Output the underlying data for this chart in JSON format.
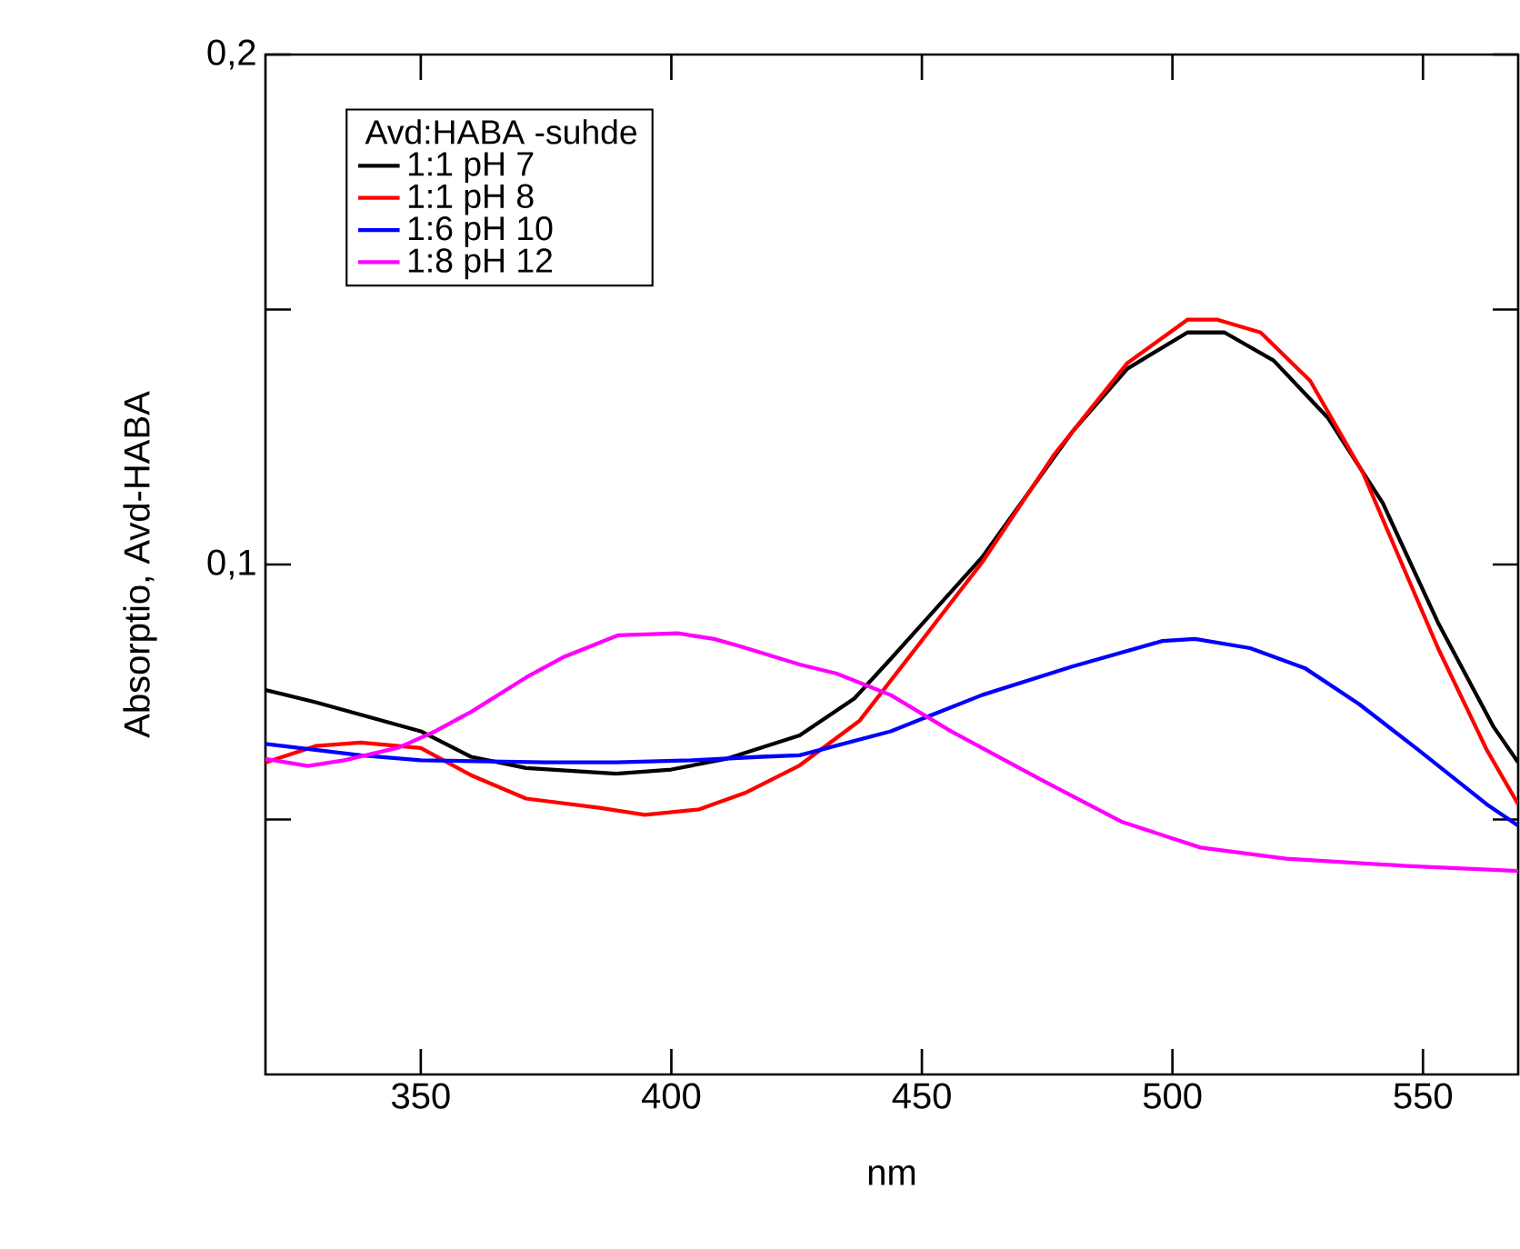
{
  "chart_data": {
    "type": "line",
    "xlabel": "nm",
    "ylabel": "Absorptio, Avd-HABA",
    "legend_title": "Avd:HABA -suhde",
    "xlim": [
      319,
      569
    ],
    "ylim": [
      0,
      0.2
    ],
    "xticks": [
      350,
      400,
      450,
      500,
      550
    ],
    "yticks": [
      {
        "value": 0.05,
        "label": null
      },
      {
        "value": 0.1,
        "label": "0,1"
      },
      {
        "value": 0.15,
        "label": null
      },
      {
        "value": 0.2,
        "label": "0,2"
      }
    ],
    "legend": "top left",
    "grid": false,
    "marker": "none",
    "line_style": "solid",
    "series": [
      {
        "name": "1:1 pH 7",
        "color": "#000000",
        "x": [
          319,
          329,
          350,
          360,
          371,
          389,
          400,
          411,
          425.6,
          436.5,
          443.8,
          462,
          480,
          491,
          503,
          510.4,
          520.2,
          531,
          542,
          553,
          564,
          569
        ],
        "values": [
          0.0754,
          0.073,
          0.0673,
          0.0623,
          0.0601,
          0.059,
          0.0598,
          0.0619,
          0.0665,
          0.0737,
          0.0815,
          0.1014,
          0.126,
          0.1384,
          0.1455,
          0.1455,
          0.14,
          0.1288,
          0.112,
          0.0886,
          0.0683,
          0.0612
        ]
      },
      {
        "name": "1:1 pH 8",
        "color": "#ff0000",
        "x": [
          319,
          329,
          338,
          350,
          360,
          371,
          385.6,
          394.7,
          405.6,
          414.7,
          425.6,
          437.6,
          450,
          462,
          476.5,
          491,
          503,
          509,
          517.6,
          527.5,
          538,
          553,
          562.7,
          569
        ],
        "values": [
          0.0612,
          0.0644,
          0.0651,
          0.064,
          0.0587,
          0.0541,
          0.0523,
          0.0509,
          0.052,
          0.0552,
          0.0606,
          0.0694,
          0.0851,
          0.1004,
          0.1217,
          0.1395,
          0.148,
          0.148,
          0.1455,
          0.136,
          0.118,
          0.0836,
          0.0637,
          0.053
        ]
      },
      {
        "name": "1:6 pH 10",
        "color": "#0000ff",
        "x": [
          319,
          338,
          350,
          374.7,
          389,
          404,
          418,
          425.6,
          443.8,
          462,
          480,
          498,
          504.5,
          515.5,
          526.4,
          537.3,
          549,
          562.7,
          569
        ],
        "values": [
          0.0648,
          0.0626,
          0.0616,
          0.0612,
          0.0612,
          0.0616,
          0.0623,
          0.0626,
          0.0673,
          0.0744,
          0.08,
          0.085,
          0.0854,
          0.0836,
          0.0797,
          0.0726,
          0.0637,
          0.053,
          0.0488
        ]
      },
      {
        "name": "1:8 pH 12",
        "color": "#ff00ff",
        "x": [
          319,
          327.5,
          334.7,
          345.6,
          352.9,
          360.2,
          371.1,
          378.4,
          389.3,
          401.3,
          408.5,
          413.6,
          425.6,
          433,
          443.8,
          455.8,
          474,
          490,
          505.6,
          522.7,
          546.7,
          569
        ],
        "values": [
          0.0619,
          0.0605,
          0.0616,
          0.0641,
          0.0673,
          0.0712,
          0.0779,
          0.0818,
          0.0861,
          0.0865,
          0.0854,
          0.084,
          0.0804,
          0.0786,
          0.0744,
          0.0673,
          0.0577,
          0.0495,
          0.0445,
          0.0423,
          0.0409,
          0.0399
        ]
      }
    ]
  }
}
